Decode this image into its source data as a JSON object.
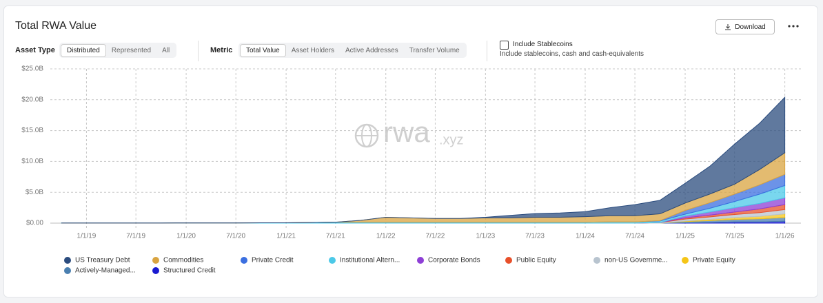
{
  "header": {
    "title": "Total RWA Value",
    "download": "Download"
  },
  "controls": {
    "asset_type_label": "Asset Type",
    "asset_type_options": [
      "Distributed",
      "Represented",
      "All"
    ],
    "metric_label": "Metric",
    "metric_options": [
      "Total Value",
      "Asset Holders",
      "Active Addresses",
      "Transfer Volume"
    ],
    "stablecoins_label": "Include Stablecoins",
    "stablecoins_note": "Include stablecoins, cash and cash-equivalents"
  },
  "watermark": {
    "brand": "rwa",
    "suffix": ".xyz"
  },
  "chart_data": {
    "type": "stacked_area",
    "x": [
      "2018-10-01",
      "2019-01-01",
      "2019-04-01",
      "2019-07-01",
      "2019-10-01",
      "2020-01-01",
      "2020-04-01",
      "2020-07-01",
      "2020-10-01",
      "2021-01-01",
      "2021-04-01",
      "2021-07-01",
      "2021-10-01",
      "2022-01-01",
      "2022-04-01",
      "2022-07-01",
      "2022-10-01",
      "2023-01-01",
      "2023-04-01",
      "2023-07-01",
      "2023-10-01",
      "2024-01-01",
      "2024-04-01",
      "2024-07-01",
      "2024-10-01",
      "2025-01-01",
      "2025-04-01",
      "2025-07-01",
      "2025-10-01",
      "2026-01-01"
    ],
    "xlim": [
      "2018-10-01",
      "2026-03-01"
    ],
    "xticks": [
      {
        "value": "2019-01-01",
        "label": "1/1/19"
      },
      {
        "value": "2019-07-01",
        "label": "7/1/19"
      },
      {
        "value": "2020-01-01",
        "label": "1/1/20"
      },
      {
        "value": "2020-07-01",
        "label": "7/1/20"
      },
      {
        "value": "2021-01-01",
        "label": "1/1/21"
      },
      {
        "value": "2021-07-01",
        "label": "7/1/21"
      },
      {
        "value": "2022-01-01",
        "label": "1/1/22"
      },
      {
        "value": "2022-07-01",
        "label": "7/1/22"
      },
      {
        "value": "2023-01-01",
        "label": "1/1/23"
      },
      {
        "value": "2023-07-01",
        "label": "7/1/23"
      },
      {
        "value": "2024-01-01",
        "label": "1/1/24"
      },
      {
        "value": "2024-07-01",
        "label": "7/1/24"
      },
      {
        "value": "2025-01-01",
        "label": "1/1/25"
      },
      {
        "value": "2025-07-01",
        "label": "7/1/25"
      },
      {
        "value": "2026-01-01",
        "label": "1/1/26"
      }
    ],
    "ylim": [
      0,
      25
    ],
    "yticks": [
      {
        "value": 0,
        "label": "$0.00"
      },
      {
        "value": 5,
        "label": "$5.0B"
      },
      {
        "value": 10,
        "label": "$10.0B"
      },
      {
        "value": 15,
        "label": "$15.0B"
      },
      {
        "value": 20,
        "label": "$20.0B"
      },
      {
        "value": 25,
        "label": "$25.0B"
      }
    ],
    "grid": true,
    "series": [
      {
        "name": "US Treasury Debt",
        "color": "#2b4c7e",
        "values": [
          0,
          0,
          0,
          0,
          0,
          0,
          0,
          0,
          0,
          0,
          0,
          0,
          0,
          0,
          0,
          0,
          0,
          0.1,
          0.4,
          0.6,
          0.7,
          0.8,
          1.3,
          1.8,
          2.2,
          3.2,
          4.5,
          6.5,
          7.5,
          9.0
        ]
      },
      {
        "name": "Commodities",
        "color": "#d9a440",
        "values": [
          0,
          0,
          0,
          0,
          0,
          0,
          0,
          0,
          0,
          0,
          0,
          0,
          0.3,
          0.8,
          0.7,
          0.6,
          0.6,
          0.7,
          0.7,
          0.8,
          0.8,
          0.9,
          1.0,
          1.0,
          1.1,
          1.2,
          1.4,
          1.6,
          2.5,
          3.5
        ]
      },
      {
        "name": "Private Credit",
        "color": "#3b6fe0",
        "values": [
          0,
          0,
          0,
          0,
          0,
          0,
          0,
          0,
          0,
          0,
          0,
          0,
          0,
          0,
          0,
          0,
          0,
          0,
          0,
          0,
          0,
          0,
          0,
          0,
          0.05,
          0.6,
          0.9,
          1.2,
          1.5,
          1.8
        ]
      },
      {
        "name": "Institutional Altern...",
        "color": "#4cc9e8",
        "values": [
          0.02,
          0.02,
          0.02,
          0.02,
          0.02,
          0.03,
          0.03,
          0.03,
          0.05,
          0.05,
          0.1,
          0.15,
          0.15,
          0.15,
          0.15,
          0.15,
          0.15,
          0.15,
          0.15,
          0.15,
          0.15,
          0.15,
          0.2,
          0.2,
          0.25,
          0.3,
          0.6,
          1.0,
          1.5,
          2.0
        ]
      },
      {
        "name": "Corporate Bonds",
        "color": "#8e3fd6",
        "values": [
          0,
          0,
          0,
          0,
          0,
          0,
          0,
          0,
          0,
          0,
          0,
          0,
          0,
          0,
          0,
          0,
          0,
          0,
          0,
          0,
          0,
          0,
          0,
          0,
          0,
          0.3,
          0.5,
          0.7,
          0.9,
          1.1
        ]
      },
      {
        "name": "Public Equity",
        "color": "#e8502a",
        "values": [
          0,
          0,
          0,
          0,
          0,
          0,
          0,
          0,
          0,
          0,
          0,
          0,
          0,
          0,
          0,
          0,
          0,
          0,
          0,
          0,
          0,
          0,
          0,
          0,
          0,
          0.2,
          0.3,
          0.4,
          0.6,
          0.8
        ]
      },
      {
        "name": "non-US Governme...",
        "color": "#b8c4cf",
        "values": [
          0,
          0,
          0,
          0,
          0,
          0,
          0,
          0,
          0,
          0,
          0,
          0,
          0,
          0,
          0,
          0,
          0,
          0,
          0,
          0,
          0,
          0,
          0,
          0,
          0.1,
          0.3,
          0.4,
          0.5,
          0.6,
          0.7
        ]
      },
      {
        "name": "Private Equity",
        "color": "#f5c518",
        "values": [
          0,
          0,
          0,
          0,
          0,
          0,
          0,
          0,
          0,
          0,
          0,
          0,
          0,
          0,
          0,
          0,
          0,
          0,
          0,
          0,
          0,
          0,
          0,
          0,
          0,
          0.1,
          0.2,
          0.3,
          0.4,
          0.6
        ]
      },
      {
        "name": "Actively-Managed...",
        "color": "#4a7fb0",
        "values": [
          0,
          0,
          0,
          0,
          0,
          0,
          0,
          0,
          0,
          0,
          0,
          0,
          0,
          0,
          0,
          0,
          0,
          0,
          0,
          0,
          0,
          0,
          0,
          0,
          0,
          0.2,
          0.3,
          0.4,
          0.5,
          0.6
        ]
      },
      {
        "name": "Structured Credit",
        "color": "#1a1ad0",
        "values": [
          0,
          0,
          0,
          0,
          0,
          0,
          0,
          0,
          0,
          0,
          0,
          0,
          0,
          0,
          0,
          0,
          0,
          0,
          0,
          0,
          0,
          0,
          0,
          0,
          0,
          0.05,
          0.1,
          0.2,
          0.2,
          0.3
        ]
      }
    ]
  }
}
